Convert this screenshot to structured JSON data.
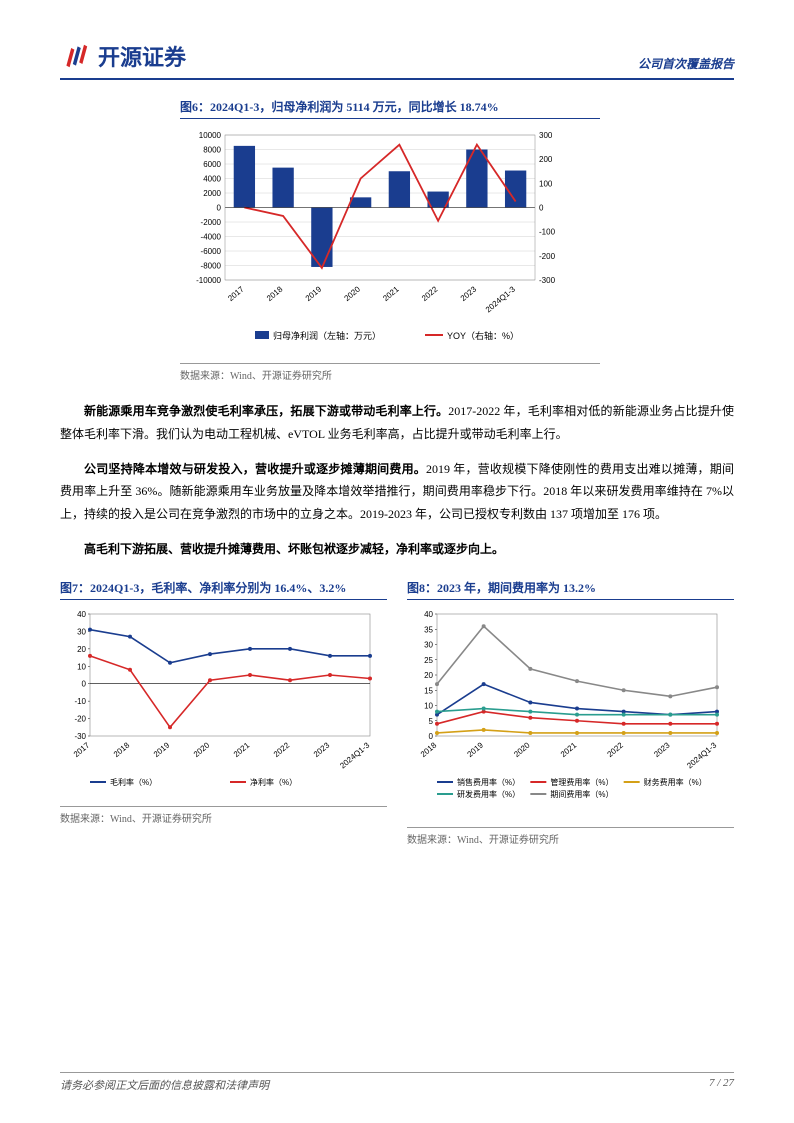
{
  "header": {
    "company_name": "开源证券",
    "report_type": "公司首次覆盖报告"
  },
  "chart6": {
    "title": "图6：2024Q1-3，归母净利润为 5114 万元，同比增长 18.74%",
    "type": "bar-line-combo",
    "categories": [
      "2017",
      "2018",
      "2019",
      "2020",
      "2021",
      "2022",
      "2023",
      "2024Q1-3"
    ],
    "bar_values": [
      8500,
      5500,
      -8200,
      1400,
      5000,
      2200,
      8000,
      5100
    ],
    "line_values": [
      0,
      -35,
      -250,
      120,
      260,
      -55,
      260,
      25
    ],
    "bar_color": "#1a3d8f",
    "line_color": "#d62828",
    "left_ylabel": "",
    "left_ylim": [
      -10000,
      10000
    ],
    "left_ytick_step": 2000,
    "right_ylim": [
      -300,
      300
    ],
    "right_ytick_step": 100,
    "legend_bar": "归母净利润（左轴：万元）",
    "legend_line": "YOY（右轴：%）",
    "background": "#ffffff",
    "grid_color": "#d0d0d0",
    "source": "数据来源：Wind、开源证券研究所"
  },
  "body": {
    "p1_bold": "新能源乘用车竞争激烈使毛利率承压，拓展下游或带动毛利率上行。",
    "p1_rest": "2017-2022 年，毛利率相对低的新能源业务占比提升使整体毛利率下滑。我们认为电动工程机械、eVTOL 业务毛利率高，占比提升或带动毛利率上行。",
    "p2_bold": "公司坚持降本增效与研发投入，营收提升或逐步摊薄期间费用。",
    "p2_rest": "2019 年，营收规模下降使刚性的费用支出难以摊薄，期间费用率上升至 36%。随新能源乘用车业务放量及降本增效举措推行，期间费用率稳步下行。2018 年以来研发费用率维持在 7%以上，持续的投入是公司在竞争激烈的市场中的立身之本。2019-2023 年，公司已授权专利数由 137 项增加至 176 项。",
    "p3_bold": "高毛利下游拓展、营收提升摊薄费用、坏账包袱逐步减轻，净利率或逐步向上。"
  },
  "chart7": {
    "title": "图7：2024Q1-3，毛利率、净利率分别为 16.4%、3.2%",
    "type": "line",
    "categories": [
      "2017",
      "2018",
      "2019",
      "2020",
      "2021",
      "2022",
      "2023",
      "2024Q1-3"
    ],
    "series": [
      {
        "name": "毛利率（%）",
        "color": "#1a3d8f",
        "values": [
          31,
          27,
          12,
          17,
          20,
          20,
          16,
          16
        ]
      },
      {
        "name": "净利率（%）",
        "color": "#d62828",
        "values": [
          16,
          8,
          -25,
          2,
          5,
          2,
          5,
          3
        ]
      }
    ],
    "ylim": [
      -30,
      40
    ],
    "ytick_step": 10,
    "background": "#ffffff",
    "source": "数据来源：Wind、开源证券研究所"
  },
  "chart8": {
    "title": "图8：2023 年，期间费用率为 13.2%",
    "type": "line",
    "categories": [
      "2018",
      "2019",
      "2020",
      "2021",
      "2022",
      "2023",
      "2024Q1-3"
    ],
    "series": [
      {
        "name": "销售费用率（%）",
        "color": "#1a3d8f",
        "values": [
          7,
          17,
          11,
          9,
          8,
          7,
          8
        ]
      },
      {
        "name": "管理费用率（%）",
        "color": "#d62828",
        "values": [
          4,
          8,
          6,
          5,
          4,
          4,
          4
        ]
      },
      {
        "name": "财务费用率（%）",
        "color": "#d4a017",
        "values": [
          1,
          2,
          1,
          1,
          1,
          1,
          1
        ]
      },
      {
        "name": "研发费用率（%）",
        "color": "#2a9d8f",
        "values": [
          8,
          9,
          8,
          7,
          7,
          7,
          7
        ]
      },
      {
        "name": "期间费用率（%）",
        "color": "#888888",
        "values": [
          17,
          36,
          22,
          18,
          15,
          13,
          16
        ]
      }
    ],
    "ylim": [
      0,
      40
    ],
    "ytick_step": 5,
    "background": "#ffffff",
    "source": "数据来源：Wind、开源证券研究所"
  },
  "footer": {
    "disclaimer": "请务必参阅正文后面的信息披露和法律声明",
    "page": "7 / 27"
  }
}
